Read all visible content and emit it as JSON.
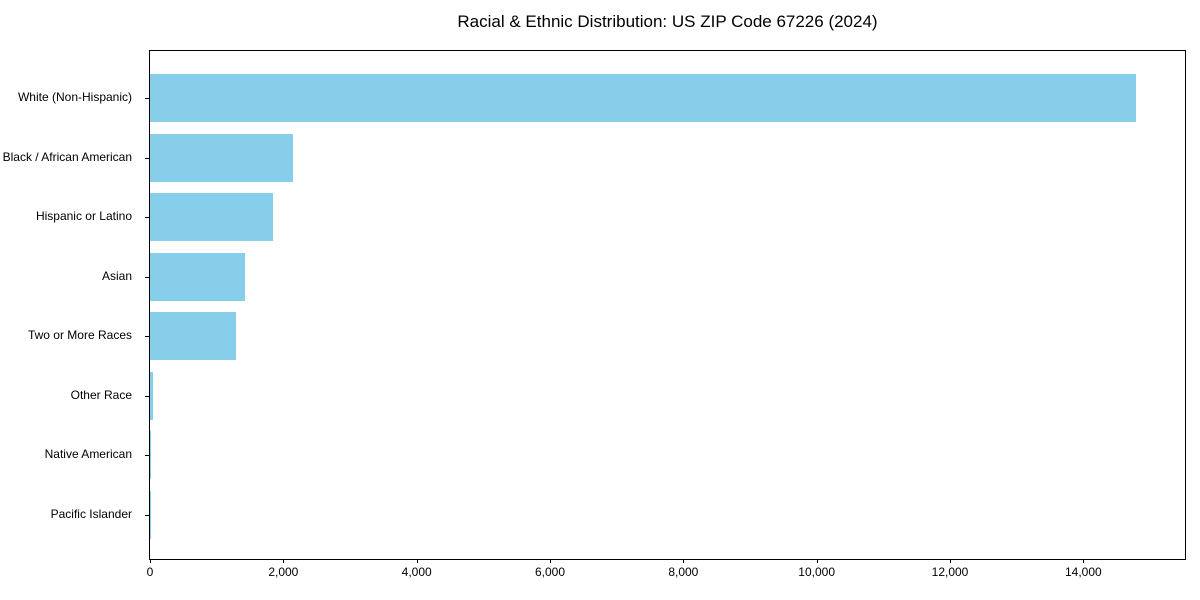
{
  "title": "Racial & Ethnic Distribution: US ZIP Code 67226 (2024)",
  "chart_data": {
    "type": "bar",
    "orientation": "horizontal",
    "title": "Racial & Ethnic Distribution: US ZIP Code 67226 (2024)",
    "xlabel": "",
    "ylabel": "",
    "categories": [
      "White (Non-Hispanic)",
      "Black / African American",
      "Hispanic or Latino",
      "Asian",
      "Two or More Races",
      "Other Race",
      "Native American",
      "Pacific Islander"
    ],
    "values": [
      14790,
      2140,
      1850,
      1430,
      1290,
      40,
      15,
      8
    ],
    "xlim": [
      0,
      15525
    ],
    "x_ticks": [
      0,
      2000,
      4000,
      6000,
      8000,
      10000,
      12000,
      14000
    ],
    "x_tick_labels": [
      "0",
      "2,000",
      "4,000",
      "6,000",
      "8,000",
      "10,000",
      "12,000",
      "14,000"
    ],
    "bar_color": "#87CEEB",
    "grid": false,
    "legend_position": "none"
  }
}
